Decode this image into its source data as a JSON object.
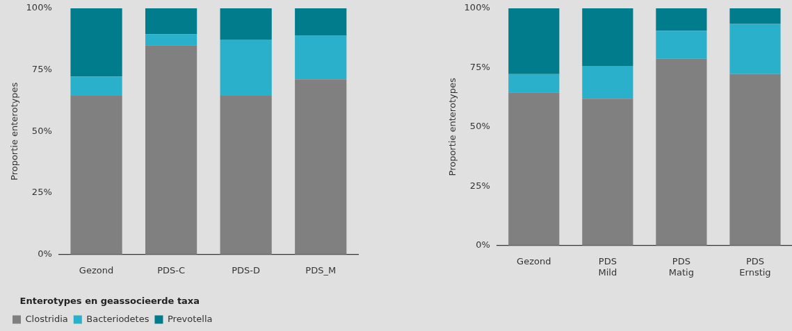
{
  "chart_data": [
    {
      "type": "bar",
      "stacked": true,
      "ylabel": "Proportie enterotypes",
      "legend_title": "Enterotypes en geassocieerde taxa",
      "legend": "bottom left",
      "grid": false,
      "categories": [
        "Gezond",
        "PDS-C",
        "PDS-D",
        "PDS_M"
      ],
      "ylim": [
        0,
        100
      ],
      "yticks": [
        {
          "value": 0,
          "label": "0%"
        },
        {
          "value": 25,
          "label": "25%"
        },
        {
          "value": 50,
          "label": "50%"
        },
        {
          "value": 75,
          "label": "75%"
        },
        {
          "value": 100,
          "label": "100%"
        }
      ],
      "series": [
        {
          "name": "Clostridia",
          "color": "#808080",
          "values": [
            64.5,
            85.0,
            64.5,
            71.2
          ]
        },
        {
          "name": "Bacteriodetes",
          "color": "#2ab0cb",
          "values": [
            7.8,
            4.5,
            22.8,
            17.7
          ]
        },
        {
          "name": "Prevotella",
          "color": "#007c8c",
          "values": [
            27.7,
            10.5,
            12.7,
            11.1
          ]
        }
      ]
    },
    {
      "type": "bar",
      "stacked": true,
      "ylabel": "Proportie enterotypes",
      "grid": false,
      "categories": [
        "Gezond",
        "PDS\nMild",
        "PDS\nMatig",
        "PDS\nErnstig"
      ],
      "ylim": [
        0,
        100
      ],
      "yticks": [
        {
          "value": 0,
          "label": "0%"
        },
        {
          "value": 25,
          "label": "25%"
        },
        {
          "value": 50,
          "label": "50%"
        },
        {
          "value": 75,
          "label": "75%"
        },
        {
          "value": 100,
          "label": "100%"
        }
      ],
      "series": [
        {
          "color": "#808080",
          "values": [
            64.5,
            61.9,
            78.7,
            72.3
          ]
        },
        {
          "color": "#2ab0cb",
          "values": [
            7.8,
            13.8,
            11.9,
            21.1
          ]
        },
        {
          "color": "#007c8c",
          "values": [
            27.7,
            24.3,
            9.4,
            6.6
          ]
        }
      ]
    }
  ]
}
